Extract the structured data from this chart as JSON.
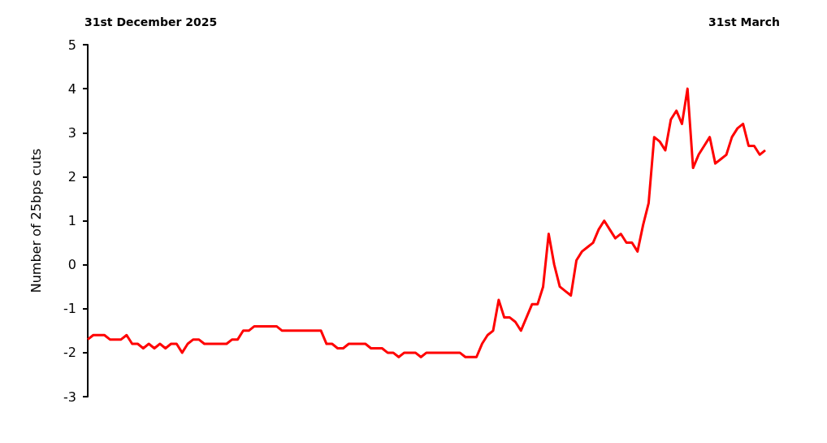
{
  "chart_data": {
    "type": "line",
    "ylabel": "Number of 25bps cuts",
    "annotations": [
      "31st December 2025",
      "31st March"
    ],
    "categories": [
      null,
      null,
      null,
      null,
      null,
      null,
      null,
      null,
      null,
      null,
      null,
      null,
      null,
      null,
      null,
      null,
      null,
      null,
      null,
      null,
      null,
      null,
      null,
      null,
      null,
      null,
      null,
      null,
      null,
      null,
      null,
      null,
      null,
      null,
      null,
      null,
      null,
      null,
      null,
      null,
      null,
      null,
      null,
      null,
      null,
      null,
      null,
      null,
      null,
      null,
      null,
      null,
      null,
      null,
      null,
      null,
      null,
      null,
      null,
      null,
      null,
      null,
      null,
      null,
      null,
      null,
      null,
      null,
      null,
      null,
      null,
      null,
      null,
      null,
      null,
      null,
      null,
      null,
      null,
      null,
      null,
      null,
      null,
      null,
      null,
      null,
      null,
      null,
      null,
      null,
      null,
      null,
      null,
      null,
      null,
      null,
      null,
      null,
      null,
      null,
      null,
      null,
      null,
      null,
      null,
      null,
      null,
      null,
      null,
      null,
      null,
      null,
      null,
      null,
      null,
      null,
      null,
      null,
      null,
      null,
      null,
      null,
      null
    ],
    "series": [
      {
        "color": "#ff0000",
        "values": [
          -1.7,
          -1.6,
          -1.6,
          -1.6,
          -1.7,
          -1.7,
          -1.7,
          -1.6,
          -1.8,
          -1.8,
          -1.9,
          -1.8,
          -1.9,
          -1.8,
          -1.9,
          -1.8,
          -1.8,
          -2.0,
          -1.8,
          -1.7,
          -1.7,
          -1.8,
          -1.8,
          -1.8,
          -1.8,
          -1.8,
          -1.7,
          -1.7,
          -1.5,
          -1.5,
          -1.4,
          -1.4,
          -1.4,
          -1.4,
          -1.4,
          -1.5,
          -1.5,
          -1.5,
          -1.5,
          -1.5,
          -1.5,
          -1.5,
          -1.5,
          -1.8,
          -1.8,
          -1.9,
          -1.9,
          -1.8,
          -1.8,
          -1.8,
          -1.8,
          -1.9,
          -1.9,
          -1.9,
          -2.0,
          -2.0,
          -2.1,
          -2.0,
          -2.0,
          -2.0,
          -2.1,
          -2.0,
          -2.0,
          -2.0,
          -2.0,
          -2.0,
          -2.0,
          -2.0,
          -2.1,
          -2.1,
          -2.1,
          -1.8,
          -1.6,
          -1.5,
          -0.8,
          -1.2,
          -1.2,
          -1.3,
          -1.5,
          -1.2,
          -0.9,
          -0.9,
          -0.5,
          0.7,
          0.0,
          -0.5,
          -0.6,
          -0.7,
          0.1,
          0.3,
          0.4,
          0.5,
          0.8,
          1.0,
          0.8,
          0.6,
          0.7,
          0.5,
          0.5,
          0.3,
          0.9,
          1.4,
          2.9,
          2.8,
          2.6,
          3.3,
          3.5,
          3.2,
          4.0,
          2.2,
          2.5,
          2.7,
          2.9,
          2.3,
          2.4,
          2.5,
          2.9,
          3.1,
          3.2,
          2.7,
          2.7,
          2.5,
          2.6
        ]
      }
    ],
    "ylim": [
      -3,
      5
    ],
    "yticks": [
      -3,
      -2,
      -1,
      0,
      1,
      2,
      3,
      4,
      5
    ],
    "grid": false,
    "marker": "none",
    "line_style": "solid"
  }
}
